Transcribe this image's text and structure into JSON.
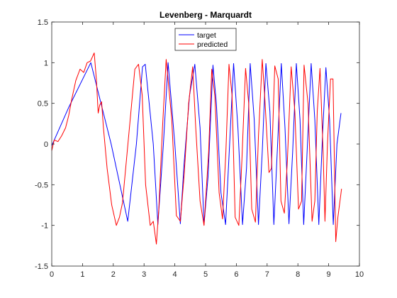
{
  "chart_data": {
    "type": "line",
    "title": "Levenberg - Marquardt",
    "xlabel": "",
    "ylabel": "",
    "xlim": [
      0,
      10
    ],
    "ylim": [
      -1.5,
      1.5
    ],
    "xticks": [
      0,
      1,
      2,
      3,
      4,
      5,
      6,
      7,
      8,
      9,
      10
    ],
    "yticks": [
      -1.5,
      -1,
      -0.5,
      0,
      0.5,
      1,
      1.5
    ],
    "xtick_labels": [
      "0",
      "1",
      "2",
      "3",
      "4",
      "5",
      "6",
      "7",
      "8",
      "9",
      "10"
    ],
    "ytick_labels": [
      "-1.5",
      "-1",
      "-0.5",
      "0",
      "0.5",
      "1",
      "1.5"
    ],
    "grid": false,
    "legend_position": "top-center",
    "series": [
      {
        "name": "target",
        "color": "#0000ff",
        "x": [
          0.0,
          0.55,
          1.27,
          1.93,
          2.47,
          2.75,
          2.95,
          3.04,
          3.3,
          3.45,
          3.63,
          3.78,
          4.0,
          4.18,
          4.3,
          4.48,
          4.65,
          4.82,
          4.95,
          5.08,
          5.24,
          5.35,
          5.5,
          5.65,
          5.78,
          5.91,
          6.05,
          6.2,
          6.33,
          6.45,
          6.58,
          6.72,
          6.84,
          6.96,
          7.09,
          7.22,
          7.34,
          7.46,
          7.58,
          7.71,
          7.83,
          7.95,
          8.07,
          8.19,
          8.31,
          8.43,
          8.55,
          8.68,
          8.8,
          8.91,
          9.03,
          9.15,
          9.27,
          9.4
        ],
        "y": [
          -0.02,
          0.45,
          1.0,
          0.0,
          -0.95,
          0.0,
          0.95,
          0.98,
          0.0,
          -0.99,
          0.0,
          1.0,
          0.0,
          -0.98,
          -0.25,
          0.6,
          0.98,
          0.2,
          -0.99,
          -0.4,
          0.97,
          0.5,
          -0.6,
          -0.99,
          0.0,
          0.99,
          0.2,
          -0.99,
          -0.3,
          0.99,
          0.3,
          -0.99,
          -0.1,
          0.99,
          0.4,
          -0.99,
          0.0,
          0.99,
          0.2,
          -0.98,
          -0.1,
          0.99,
          0.3,
          -0.99,
          0.0,
          0.99,
          0.3,
          -0.99,
          0.1,
          0.94,
          0.3,
          -0.99,
          0.0,
          0.38
        ]
      },
      {
        "name": "predicted",
        "color": "#ff0000",
        "x": [
          0.0,
          0.08,
          0.2,
          0.32,
          0.45,
          0.55,
          0.65,
          0.78,
          0.92,
          1.04,
          1.15,
          1.26,
          1.38,
          1.45,
          1.51,
          1.56,
          1.62,
          1.68,
          1.8,
          1.95,
          2.1,
          2.2,
          2.3,
          2.5,
          2.7,
          2.82,
          2.94,
          3.05,
          3.2,
          3.3,
          3.4,
          3.48,
          3.6,
          3.72,
          3.9,
          4.05,
          4.18,
          4.3,
          4.45,
          4.58,
          4.68,
          4.82,
          4.95,
          5.1,
          5.2,
          5.3,
          5.44,
          5.55,
          5.66,
          5.76,
          5.86,
          5.96,
          6.08,
          6.18,
          6.3,
          6.4,
          6.5,
          6.62,
          6.72,
          6.84,
          6.92,
          7.06,
          7.14,
          7.25,
          7.36,
          7.45,
          7.56,
          7.66,
          7.78,
          7.9,
          8.02,
          8.12,
          8.2,
          8.33,
          8.46,
          8.55,
          8.63,
          8.72,
          8.82,
          8.88,
          8.96,
          9.06,
          9.14,
          9.23,
          9.3,
          9.42
        ],
        "y": [
          -0.08,
          0.05,
          0.03,
          0.1,
          0.2,
          0.35,
          0.55,
          0.78,
          0.92,
          0.88,
          1.0,
          1.02,
          1.12,
          0.8,
          0.38,
          0.48,
          0.52,
          0.2,
          -0.3,
          -0.75,
          -1.0,
          -0.9,
          -0.72,
          0.1,
          0.92,
          0.98,
          0.6,
          -0.5,
          -1.0,
          -0.95,
          -1.23,
          -0.8,
          0.2,
          1.04,
          0.3,
          -0.88,
          -0.95,
          -0.4,
          0.5,
          0.95,
          0.2,
          -0.7,
          -1.0,
          -0.1,
          0.92,
          0.6,
          -0.6,
          -0.92,
          -0.1,
          0.98,
          0.6,
          -0.9,
          -1.0,
          -0.2,
          0.93,
          0.5,
          -0.8,
          -0.96,
          0.1,
          1.04,
          0.6,
          -0.35,
          -0.3,
          0.96,
          0.8,
          -0.7,
          -0.85,
          -0.2,
          0.95,
          0.4,
          -0.8,
          -0.7,
          0.97,
          0.5,
          -0.95,
          -0.7,
          0.4,
          0.93,
          -0.1,
          -0.95,
          0.0,
          0.8,
          0.8,
          -1.2,
          -0.9,
          -0.55
        ]
      }
    ]
  }
}
